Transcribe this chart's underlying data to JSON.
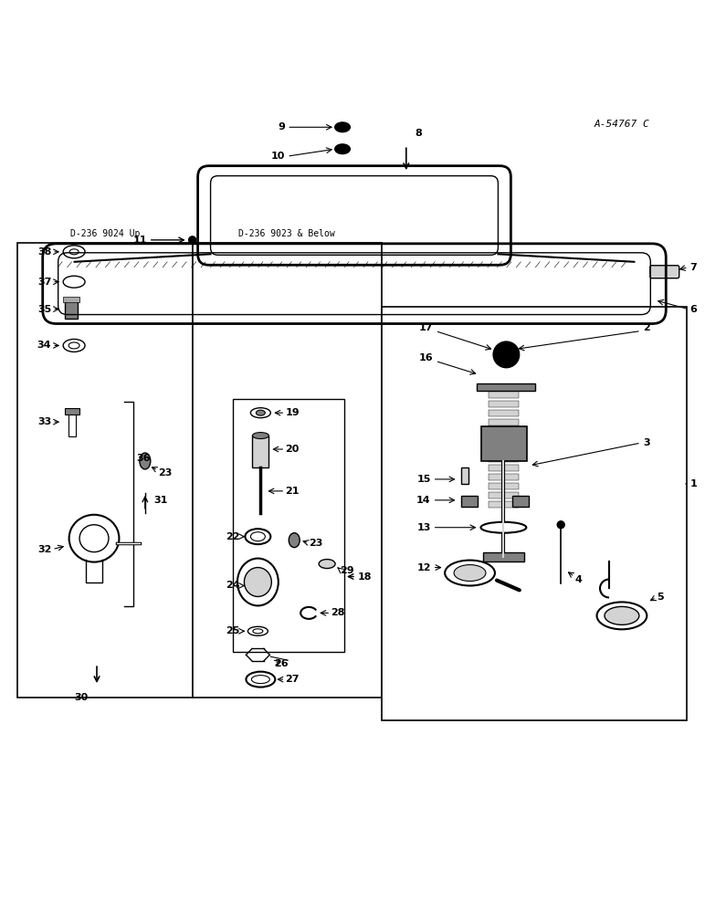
{
  "background_color": "#ffffff",
  "figure_width": 7.72,
  "figure_height": 10.0,
  "dpi": 100,
  "diagram_ref": "A-54767 C",
  "box1_label": "D-236 9024 Up",
  "box2_label": "D-236 9023 & Below"
}
